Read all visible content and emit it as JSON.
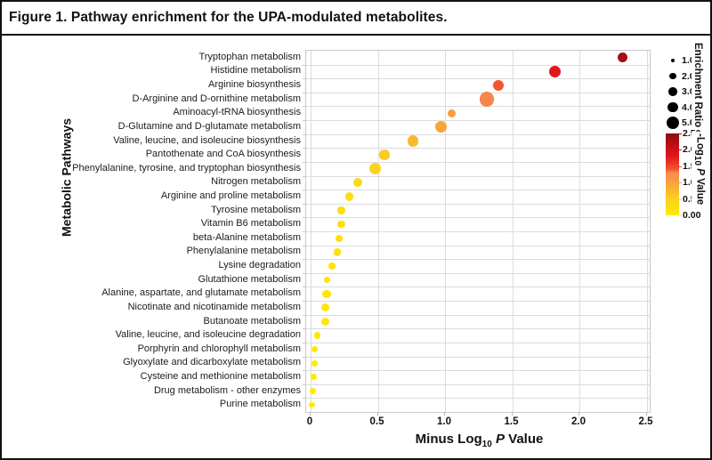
{
  "figure": {
    "title": "Figure 1. Pathway enrichment for the UPA-modulated metabolites."
  },
  "y_axis": {
    "title": "Metabolic Pathways"
  },
  "x_axis": {
    "label_prefix": "Minus Log",
    "label_sub": "10",
    "label_italic": " P",
    "label_suffix": " Value",
    "ticks": [
      "0",
      "0.5",
      "1.0",
      "1.5",
      "2.0",
      "2.5"
    ]
  },
  "legend": {
    "size": {
      "title": "Enrichment Ratio",
      "items": [
        {
          "label": "1.0",
          "value": 1.0
        },
        {
          "label": "2.0",
          "value": 2.0
        },
        {
          "label": "3.0",
          "value": 3.0
        },
        {
          "label": "4.0",
          "value": 4.0
        },
        {
          "label": "5.0",
          "value": 5.0
        }
      ],
      "dot_color": "#000000"
    },
    "color": {
      "title_prefix": "-Log",
      "title_sub": "10",
      "title_italic": " P",
      "title_suffix": " Value",
      "ticks": [
        "2.50",
        "2.00",
        "1.50",
        "1.00",
        "0.50",
        "0.00"
      ]
    }
  },
  "chart_data": {
    "type": "scatter",
    "title": "Figure 1. Pathway enrichment for the UPA-modulated metabolites.",
    "xlabel": "Minus Log10 P Value",
    "ylabel": "Metabolic Pathways",
    "xlim": [
      0,
      2.5
    ],
    "x_tick_values": [
      0,
      0.5,
      1.0,
      1.5,
      2.0,
      2.5
    ],
    "grid": true,
    "legend_position": "right",
    "color_scale": {
      "label": "-Log10 P Value",
      "range": [
        0,
        2.5
      ],
      "stops": [
        {
          "value": 0.0,
          "color": "#FFEB00"
        },
        {
          "value": 0.5,
          "color": "#FAD120"
        },
        {
          "value": 1.0,
          "color": "#F8A23B"
        },
        {
          "value": 1.3,
          "color": "#F68B50"
        },
        {
          "value": 1.4,
          "color": "#F2572E"
        },
        {
          "value": 1.8,
          "color": "#E2161B"
        },
        {
          "value": 2.1,
          "color": "#C40F16"
        },
        {
          "value": 2.5,
          "color": "#8B0D10"
        }
      ]
    },
    "size_scale": {
      "label": "Enrichment Ratio",
      "legend_values": [
        1.0,
        2.0,
        3.0,
        4.0,
        5.0
      ]
    },
    "points": [
      {
        "pathway": "Tryptophan metabolism",
        "minus_log10_p": 2.32,
        "enrichment_ratio": 3.7
      },
      {
        "pathway": "Histidine metabolism",
        "minus_log10_p": 1.82,
        "enrichment_ratio": 4.5
      },
      {
        "pathway": "Arginine biosynthesis",
        "minus_log10_p": 1.4,
        "enrichment_ratio": 4.1
      },
      {
        "pathway": "D-Arginine and D-ornithine metabolism",
        "minus_log10_p": 1.31,
        "enrichment_ratio": 6.0
      },
      {
        "pathway": "Aminoacyl-tRNA biosynthesis",
        "minus_log10_p": 1.05,
        "enrichment_ratio": 3.0
      },
      {
        "pathway": "D-Glutamine and D-glutamate metabolism",
        "minus_log10_p": 0.97,
        "enrichment_ratio": 4.5
      },
      {
        "pathway": "Valine, leucine, and isoleucine biosynthesis",
        "minus_log10_p": 0.76,
        "enrichment_ratio": 4.1
      },
      {
        "pathway": "Pantothenate and CoA biosynthesis",
        "minus_log10_p": 0.55,
        "enrichment_ratio": 3.8
      },
      {
        "pathway": "Phenylalanine, tyrosine, and tryptophan biosynthesis",
        "minus_log10_p": 0.48,
        "enrichment_ratio": 4.7
      },
      {
        "pathway": "Nitrogen metabolism",
        "minus_log10_p": 0.35,
        "enrichment_ratio": 3.2
      },
      {
        "pathway": "Arginine and proline metabolism",
        "minus_log10_p": 0.29,
        "enrichment_ratio": 2.9
      },
      {
        "pathway": "Tyrosine metabolism",
        "minus_log10_p": 0.23,
        "enrichment_ratio": 2.6
      },
      {
        "pathway": "Vitamin B6 metabolism",
        "minus_log10_p": 0.23,
        "enrichment_ratio": 2.6
      },
      {
        "pathway": "beta-Alanine metabolism",
        "minus_log10_p": 0.21,
        "enrichment_ratio": 2.4
      },
      {
        "pathway": "Phenylalanine metabolism",
        "minus_log10_p": 0.2,
        "enrichment_ratio": 2.5
      },
      {
        "pathway": "Lysine degradation",
        "minus_log10_p": 0.16,
        "enrichment_ratio": 2.2
      },
      {
        "pathway": "Glutathione metabolism",
        "minus_log10_p": 0.12,
        "enrichment_ratio": 2.0
      },
      {
        "pathway": "Alanine, aspartate, and glutamate metabolism",
        "minus_log10_p": 0.12,
        "enrichment_ratio": 3.0
      },
      {
        "pathway": "Nicotinate and nicotinamide metabolism",
        "minus_log10_p": 0.11,
        "enrichment_ratio": 2.8
      },
      {
        "pathway": "Butanoate metabolism",
        "minus_log10_p": 0.11,
        "enrichment_ratio": 3.0
      },
      {
        "pathway": "Valine, leucine,  and isoleucine degradation",
        "minus_log10_p": 0.05,
        "enrichment_ratio": 2.1
      },
      {
        "pathway": "Porphyrin and chlorophyll metabolism",
        "minus_log10_p": 0.03,
        "enrichment_ratio": 1.9
      },
      {
        "pathway": "Glyoxylate and dicarboxylate metabolism",
        "minus_log10_p": 0.03,
        "enrichment_ratio": 1.9
      },
      {
        "pathway": "Cysteine and methionine metabolism",
        "minus_log10_p": 0.02,
        "enrichment_ratio": 1.9
      },
      {
        "pathway": "Drug metabolism - other enzymes",
        "minus_log10_p": 0.015,
        "enrichment_ratio": 1.7
      },
      {
        "pathway": "Purine metabolism",
        "minus_log10_p": 0.01,
        "enrichment_ratio": 1.7
      }
    ]
  },
  "colors": {
    "grid": "#dcdcdc",
    "plot_border": "#c9c9c9",
    "text": "#111111"
  }
}
